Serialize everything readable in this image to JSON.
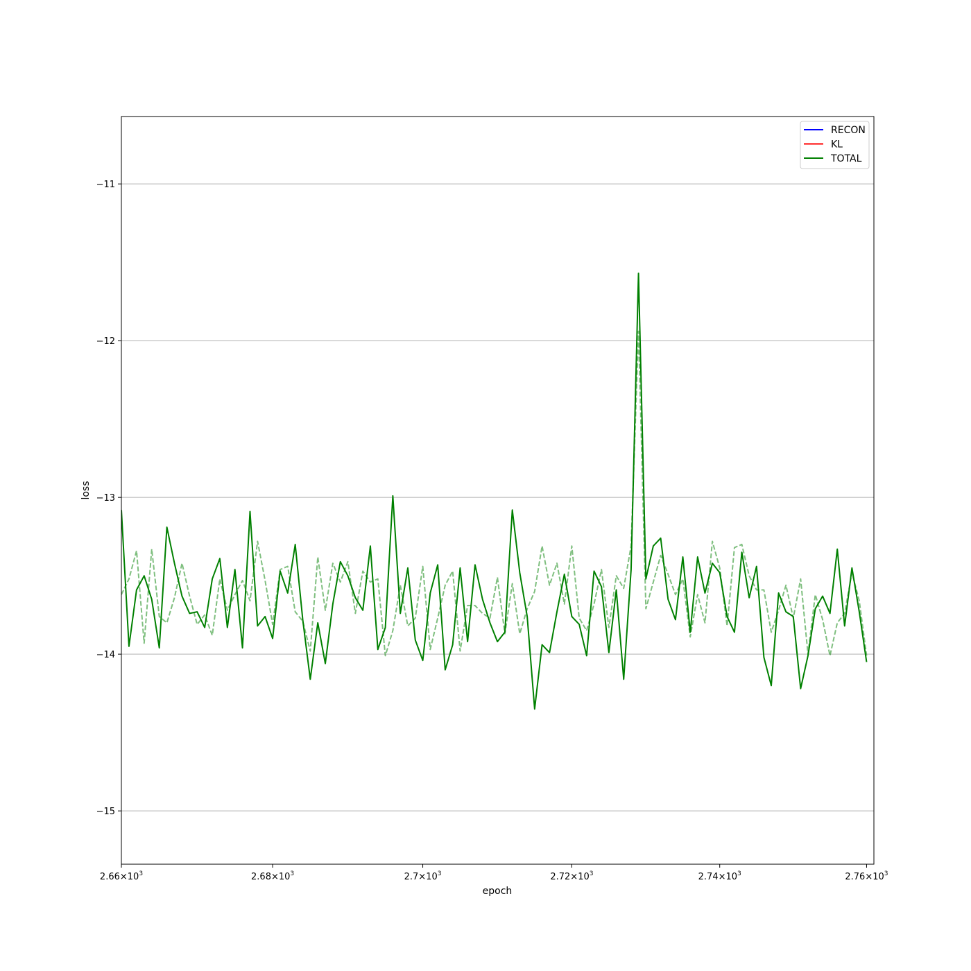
{
  "chart_data": {
    "type": "line",
    "title": "",
    "xlabel": "epoch",
    "ylabel": "loss",
    "x_scale": "log",
    "xlim": [
      2660,
      2761
    ],
    "ylim": [
      -15.34,
      -10.57
    ],
    "grid": {
      "y": true,
      "x": false
    },
    "legend_position": "top-right",
    "x_ticks": [
      {
        "value": 2660,
        "mantissa": "2.66",
        "base": "10",
        "exp": "3"
      },
      {
        "value": 2680,
        "mantissa": "2.68",
        "base": "10",
        "exp": "3"
      },
      {
        "value": 2700,
        "mantissa": "2.7",
        "base": "10",
        "exp": "3"
      },
      {
        "value": 2720,
        "mantissa": "2.72",
        "base": "10",
        "exp": "3"
      },
      {
        "value": 2740,
        "mantissa": "2.74",
        "base": "10",
        "exp": "3"
      },
      {
        "value": 2760,
        "mantissa": "2.76",
        "base": "10",
        "exp": "3"
      }
    ],
    "y_ticks": [
      {
        "value": -11,
        "label": "−11"
      },
      {
        "value": -12,
        "label": "−12"
      },
      {
        "value": -13,
        "label": "−13"
      },
      {
        "value": -14,
        "label": "−14"
      },
      {
        "value": -15,
        "label": "−15"
      }
    ],
    "legend": [
      {
        "name": "RECON",
        "color": "#0000ff"
      },
      {
        "name": "KL",
        "color": "#ff0000"
      },
      {
        "name": "TOTAL",
        "color": "#008000"
      }
    ],
    "x_start": 2660,
    "series": [
      {
        "name": "TOTAL",
        "style": "solid",
        "color": "#008000",
        "opacity": 1.0,
        "values": [
          -13.08,
          -13.95,
          -13.59,
          -13.5,
          -13.65,
          -13.96,
          -13.19,
          -13.42,
          -13.63,
          -13.74,
          -13.73,
          -13.83,
          -13.52,
          -13.39,
          -13.83,
          -13.46,
          -13.96,
          -13.09,
          -13.82,
          -13.76,
          -13.9,
          -13.47,
          -13.61,
          -13.3,
          -13.78,
          -14.16,
          -13.8,
          -14.06,
          -13.68,
          -13.41,
          -13.5,
          -13.64,
          -13.72,
          -13.31,
          -13.97,
          -13.83,
          -12.99,
          -13.74,
          -13.45,
          -13.91,
          -14.04,
          -13.61,
          -13.43,
          -14.1,
          -13.94,
          -13.45,
          -13.92,
          -13.43,
          -13.65,
          -13.8,
          -13.92,
          -13.86,
          -13.08,
          -13.48,
          -13.76,
          -14.35,
          -13.94,
          -13.99,
          -13.73,
          -13.49,
          -13.76,
          -13.81,
          -14.01,
          -13.47,
          -13.57,
          -13.99,
          -13.59,
          -14.16,
          -13.46,
          -11.57,
          -13.52,
          -13.31,
          -13.26,
          -13.65,
          -13.78,
          -13.38,
          -13.86,
          -13.38,
          -13.61,
          -13.42,
          -13.48,
          -13.76,
          -13.86,
          -13.35,
          -13.64,
          -13.44,
          -14.02,
          -14.2,
          -13.61,
          -13.73,
          -13.76,
          -14.22,
          -14.01,
          -13.71,
          -13.63,
          -13.74,
          -13.33,
          -13.82,
          -13.45,
          -13.73,
          -14.05
        ]
      },
      {
        "name": "",
        "style": "dashed",
        "color": "#008000",
        "opacity": 0.5,
        "values": [
          -13.62,
          -13.52,
          -13.34,
          -13.93,
          -13.33,
          -13.76,
          -13.8,
          -13.64,
          -13.42,
          -13.63,
          -13.81,
          -13.75,
          -13.88,
          -13.52,
          -13.72,
          -13.62,
          -13.53,
          -13.66,
          -13.28,
          -13.53,
          -13.81,
          -13.46,
          -13.44,
          -13.73,
          -13.79,
          -13.98,
          -13.38,
          -13.72,
          -13.42,
          -13.54,
          -13.41,
          -13.74,
          -13.47,
          -13.54,
          -13.52,
          -14.01,
          -13.85,
          -13.56,
          -13.82,
          -13.77,
          -13.44,
          -13.97,
          -13.77,
          -13.56,
          -13.47,
          -13.98,
          -13.69,
          -13.69,
          -13.74,
          -13.77,
          -13.51,
          -13.87,
          -13.55,
          -13.87,
          -13.71,
          -13.6,
          -13.31,
          -13.56,
          -13.42,
          -13.68,
          -13.31,
          -13.77,
          -13.85,
          -13.68,
          -13.46,
          -13.83,
          -13.5,
          -13.58,
          -13.31,
          -11.94,
          -13.71,
          -13.54,
          -13.37,
          -13.49,
          -13.62,
          -13.52,
          -13.89,
          -13.62,
          -13.8,
          -13.28,
          -13.45,
          -13.82,
          -13.32,
          -13.3,
          -13.5,
          -13.59,
          -13.59,
          -13.86,
          -13.72,
          -13.56,
          -13.77,
          -13.52,
          -14.0,
          -13.62,
          -13.78,
          -14.01,
          -13.8,
          -13.74,
          -13.48,
          -13.66,
          -14.01
        ]
      }
    ]
  }
}
